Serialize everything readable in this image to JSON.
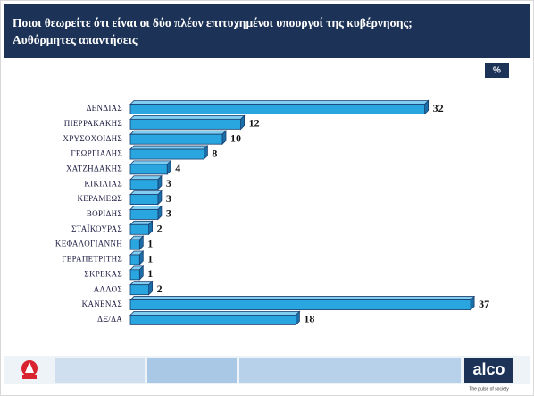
{
  "chart_data": {
    "type": "bar",
    "title": "Ποιοι θεωρείτε ότι είναι οι δύο πλέον επιτυχημένοι υπουργοί της κυβέρνησης;",
    "subtitle": "Αυθόρμητες απαντήσεις",
    "unit": "%",
    "categories": [
      "ΔΕΝΔΙΑΣ",
      "ΠΙΕΡΡΑΚΑΚΗΣ",
      "ΧΡΥΣΟΧΟΙΔΗΣ",
      "ΓΕΩΡΓΙΑΔΗΣ",
      "ΧΑΤΖΗΔΑΚΗΣ",
      "ΚΙΚΙΛΙΑΣ",
      "ΚΕΡΑΜΕΩΣ",
      "ΒΟΡΙΔΗΣ",
      "ΣΤΑΪΚΟΥΡΑΣ",
      "ΚΕΦΑΛΟΓΙΑΝΝΗ",
      "ΓΕΡΑΠΕΤΡΙΤΗΣ",
      "ΣΚΡΕΚΑΣ",
      "ΑΛΛΟΣ",
      "ΚΑΝΕΝΑΣ",
      "ΔΞ/ΔΑ"
    ],
    "values": [
      32,
      12,
      10,
      8,
      4,
      3,
      3,
      3,
      2,
      1,
      1,
      1,
      2,
      37,
      18
    ],
    "color": "#29a6e0",
    "brand": "alco",
    "tagline": "The pulse of society"
  }
}
